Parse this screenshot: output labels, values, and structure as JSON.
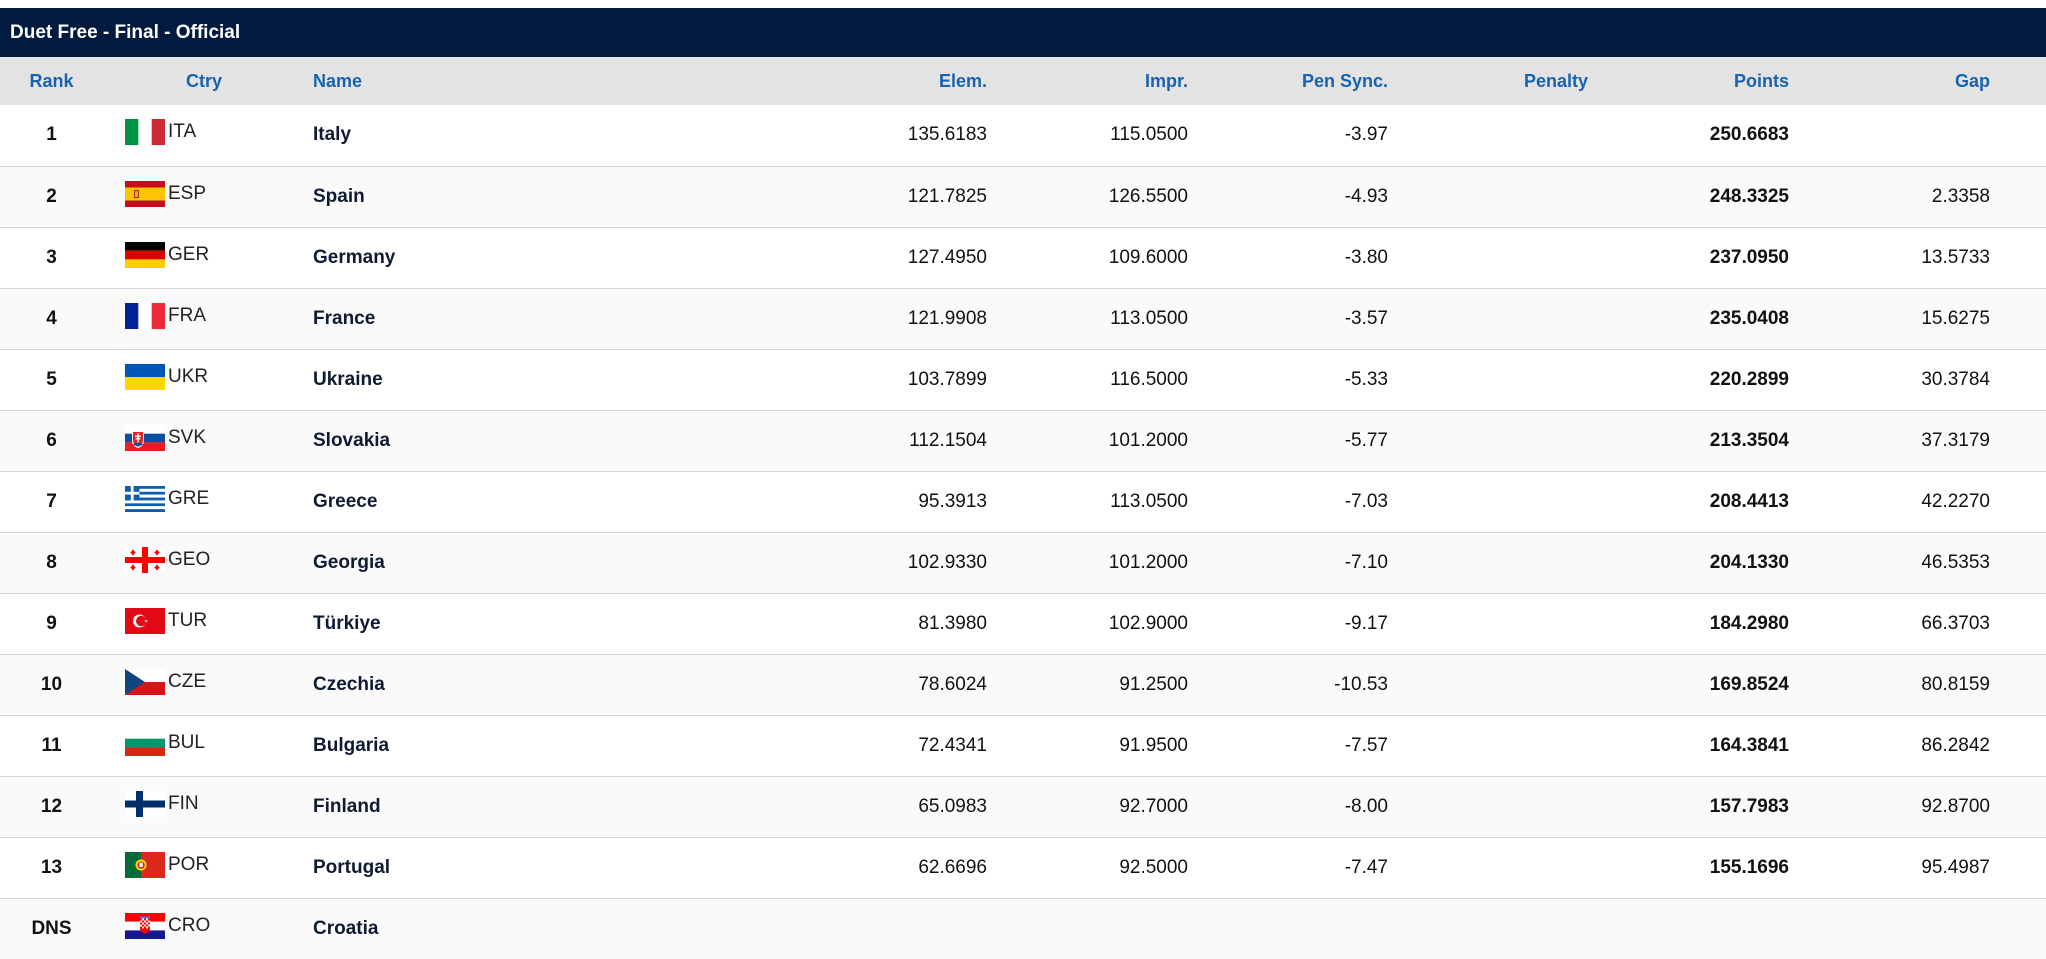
{
  "title": "Duet Free - Final  -  Official",
  "headers": {
    "rank": "Rank",
    "ctry": "Ctry",
    "name": "Name",
    "elem": "Elem.",
    "impr": "Impr.",
    "pen_sync": "Pen Sync.",
    "penalty": "Penalty",
    "points": "Points",
    "gap": "Gap"
  },
  "rows": [
    {
      "rank": "1",
      "code": "ITA",
      "flag": "italy-flag-icon",
      "name": "Italy",
      "elem": "135.6183",
      "impr": "115.0500",
      "pen_sync": "-3.97",
      "penalty": "",
      "points": "250.6683",
      "gap": ""
    },
    {
      "rank": "2",
      "code": "ESP",
      "flag": "spain-flag-icon",
      "name": "Spain",
      "elem": "121.7825",
      "impr": "126.5500",
      "pen_sync": "-4.93",
      "penalty": "",
      "points": "248.3325",
      "gap": "2.3358"
    },
    {
      "rank": "3",
      "code": "GER",
      "flag": "germany-flag-icon",
      "name": "Germany",
      "elem": "127.4950",
      "impr": "109.6000",
      "pen_sync": "-3.80",
      "penalty": "",
      "points": "237.0950",
      "gap": "13.5733"
    },
    {
      "rank": "4",
      "code": "FRA",
      "flag": "france-flag-icon",
      "name": "France",
      "elem": "121.9908",
      "impr": "113.0500",
      "pen_sync": "-3.57",
      "penalty": "",
      "points": "235.0408",
      "gap": "15.6275"
    },
    {
      "rank": "5",
      "code": "UKR",
      "flag": "ukraine-flag-icon",
      "name": "Ukraine",
      "elem": "103.7899",
      "impr": "116.5000",
      "pen_sync": "-5.33",
      "penalty": "",
      "points": "220.2899",
      "gap": "30.3784"
    },
    {
      "rank": "6",
      "code": "SVK",
      "flag": "slovakia-flag-icon",
      "name": "Slovakia",
      "elem": "112.1504",
      "impr": "101.2000",
      "pen_sync": "-5.77",
      "penalty": "",
      "points": "213.3504",
      "gap": "37.3179"
    },
    {
      "rank": "7",
      "code": "GRE",
      "flag": "greece-flag-icon",
      "name": "Greece",
      "elem": "95.3913",
      "impr": "113.0500",
      "pen_sync": "-7.03",
      "penalty": "",
      "points": "208.4413",
      "gap": "42.2270"
    },
    {
      "rank": "8",
      "code": "GEO",
      "flag": "georgia-flag-icon",
      "name": "Georgia",
      "elem": "102.9330",
      "impr": "101.2000",
      "pen_sync": "-7.10",
      "penalty": "",
      "points": "204.1330",
      "gap": "46.5353"
    },
    {
      "rank": "9",
      "code": "TUR",
      "flag": "turkiye-flag-icon",
      "name": "Türkiye",
      "elem": "81.3980",
      "impr": "102.9000",
      "pen_sync": "-9.17",
      "penalty": "",
      "points": "184.2980",
      "gap": "66.3703"
    },
    {
      "rank": "10",
      "code": "CZE",
      "flag": "czechia-flag-icon",
      "name": "Czechia",
      "elem": "78.6024",
      "impr": "91.2500",
      "pen_sync": "-10.53",
      "penalty": "",
      "points": "169.8524",
      "gap": "80.8159"
    },
    {
      "rank": "11",
      "code": "BUL",
      "flag": "bulgaria-flag-icon",
      "name": "Bulgaria",
      "elem": "72.4341",
      "impr": "91.9500",
      "pen_sync": "-7.57",
      "penalty": "",
      "points": "164.3841",
      "gap": "86.2842"
    },
    {
      "rank": "12",
      "code": "FIN",
      "flag": "finland-flag-icon",
      "name": "Finland",
      "elem": "65.0983",
      "impr": "92.7000",
      "pen_sync": "-8.00",
      "penalty": "",
      "points": "157.7983",
      "gap": "92.8700"
    },
    {
      "rank": "13",
      "code": "POR",
      "flag": "portugal-flag-icon",
      "name": "Portugal",
      "elem": "62.6696",
      "impr": "92.5000",
      "pen_sync": "-7.47",
      "penalty": "",
      "points": "155.1696",
      "gap": "95.4987"
    },
    {
      "rank": "DNS",
      "code": "CRO",
      "flag": "croatia-flag-icon",
      "name": "Croatia",
      "elem": "",
      "impr": "",
      "pen_sync": "",
      "penalty": "",
      "points": "",
      "gap": ""
    }
  ],
  "colors": {
    "title_bg": "#001a40",
    "header_bg": "#e3e3e3",
    "header_text": "#1863b0",
    "row_divider": "#d8d8d8"
  }
}
